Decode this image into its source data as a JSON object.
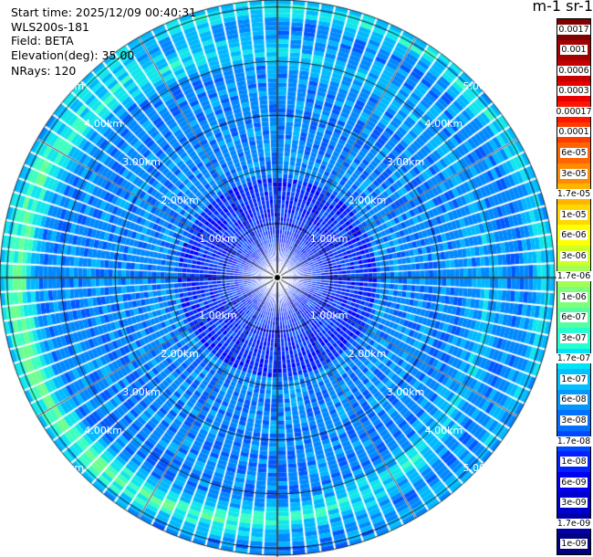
{
  "info": {
    "start_time": "Start time: 2025/12/09 00:40:31",
    "instrument": "WLS200s-181",
    "field": "Field: BETA",
    "elevation": "Elevation(deg): 35.00",
    "nrays": "NRays: 120"
  },
  "unit_label": "m-1 sr-1",
  "colorbar": {
    "labels": [
      "0.0017",
      "0.001",
      "0.0006",
      "0.0003",
      "0.00017",
      "0.0001",
      "6e-05",
      "3e-05",
      "1.7e-05",
      "1e-05",
      "6e-06",
      "3e-06",
      "1.7e-06",
      "1e-06",
      "6e-07",
      "3e-07",
      "1.7e-07",
      "1e-07",
      "6e-08",
      "3e-08",
      "1.7e-08",
      "1e-08",
      "6e-09",
      "3e-09",
      "1.7e-09",
      "1e-09"
    ],
    "colors": [
      "#7f0000",
      "#a30000",
      "#c40000",
      "#e80000",
      "#ff1500",
      "#ff3c00",
      "#ff6400",
      "#ff8c00",
      "#ffb400",
      "#ffd800",
      "#ffff00",
      "#d0ff26",
      "#a2ff54",
      "#7dff7a",
      "#54ffa2",
      "#26ffd0",
      "#00e4f8",
      "#00c0ff",
      "#0098ff",
      "#0070ff",
      "#0048ff",
      "#0020ff",
      "#0000f1",
      "#0000cd",
      "#0000a8",
      "#000080"
    ]
  },
  "rings": [
    {
      "label": "1.00km"
    },
    {
      "label": "2.00km"
    },
    {
      "label": "3.00km"
    },
    {
      "label": "4.00km"
    },
    {
      "label": "5.00km"
    }
  ],
  "plot": {
    "nrays": 120,
    "max_range_km": 5.13
  }
}
